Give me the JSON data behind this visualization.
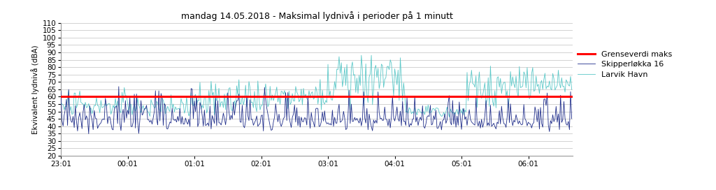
{
  "title": "mandag 14.05.2018 - Maksimal lydnivå i perioder på 1 minutt",
  "ylabel": "Ekvivalent lydnivå (dBA)",
  "ylim": [
    20,
    110
  ],
  "yticks": [
    20,
    25,
    30,
    35,
    40,
    45,
    50,
    55,
    60,
    65,
    70,
    75,
    80,
    85,
    90,
    95,
    100,
    105,
    110
  ],
  "xlim_start_min": 0,
  "xlim_end_min": 460,
  "xtick_labels": [
    "23:01",
    "00:01",
    "01:01",
    "02:01",
    "03:01",
    "04:01",
    "05:01",
    "06:01"
  ],
  "xtick_positions": [
    0,
    60,
    120,
    180,
    240,
    300,
    360,
    420
  ],
  "grenseverdi": 60,
  "line_red_color": "#FF0000",
  "line_dark_blue_color": "#1F2D8A",
  "line_cyan_color": "#5BC8C8",
  "legend_labels": [
    "Grenseverdi maks",
    "Skipperløkka 16",
    "Larvik Havn"
  ],
  "bg_color": "#FFFFFF",
  "grid_color": "#C0C0C0",
  "title_fontsize": 9,
  "axis_fontsize": 7.5,
  "legend_fontsize": 8,
  "fig_width": 10.24,
  "fig_height": 2.72,
  "dpi": 100
}
